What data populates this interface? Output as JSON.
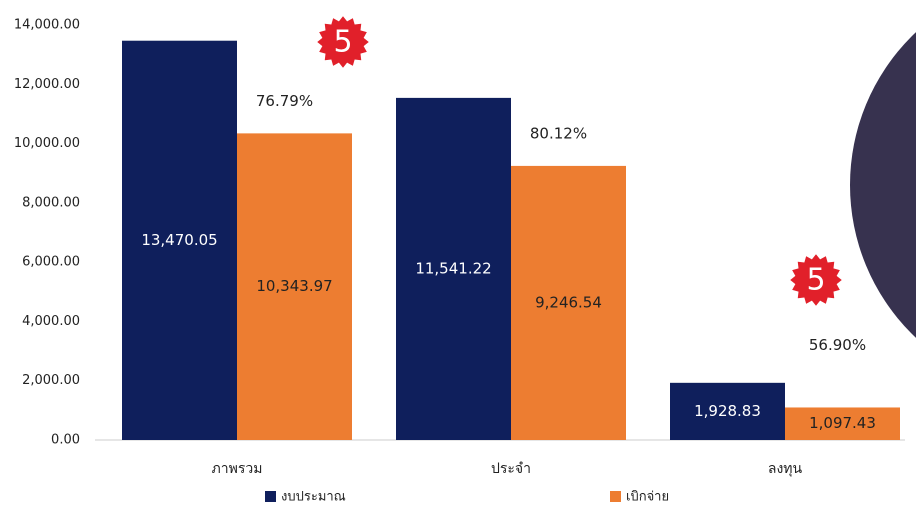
{
  "chart_data": {
    "type": "bar",
    "categories": [
      "ภาพรวม",
      "ประจำ",
      "ลงทุน"
    ],
    "series": [
      {
        "name": "งบประมาณ",
        "color": "#0f1f5c",
        "values": [
          13470.05,
          11541.22,
          1928.83
        ],
        "value_labels": [
          "13,470.05",
          "11,541.22",
          "1,928.83"
        ]
      },
      {
        "name": "เบิกจ่าย",
        "color": "#ed7d31",
        "values": [
          10343.97,
          9246.54,
          1097.43
        ],
        "value_labels": [
          "10,343.97",
          "9,246.54",
          "1,097.43"
        ]
      }
    ],
    "percent_labels": [
      "76.79%",
      "80.12%",
      "56.90%"
    ],
    "badges": [
      "5",
      "5"
    ],
    "ylim": [
      0,
      14000
    ],
    "yticks": [
      {
        "value": 0,
        "label": "0.00"
      },
      {
        "value": 2000,
        "label": "2,000.00"
      },
      {
        "value": 4000,
        "label": "4,000.00"
      },
      {
        "value": 6000,
        "label": "6,000.00"
      },
      {
        "value": 8000,
        "label": "8,000.00"
      },
      {
        "value": 10000,
        "label": "10,000.00"
      },
      {
        "value": 12000,
        "label": "12,000.00"
      },
      {
        "value": 14000,
        "label": "14,000.00"
      }
    ],
    "grid": false,
    "legend": "bottom"
  }
}
